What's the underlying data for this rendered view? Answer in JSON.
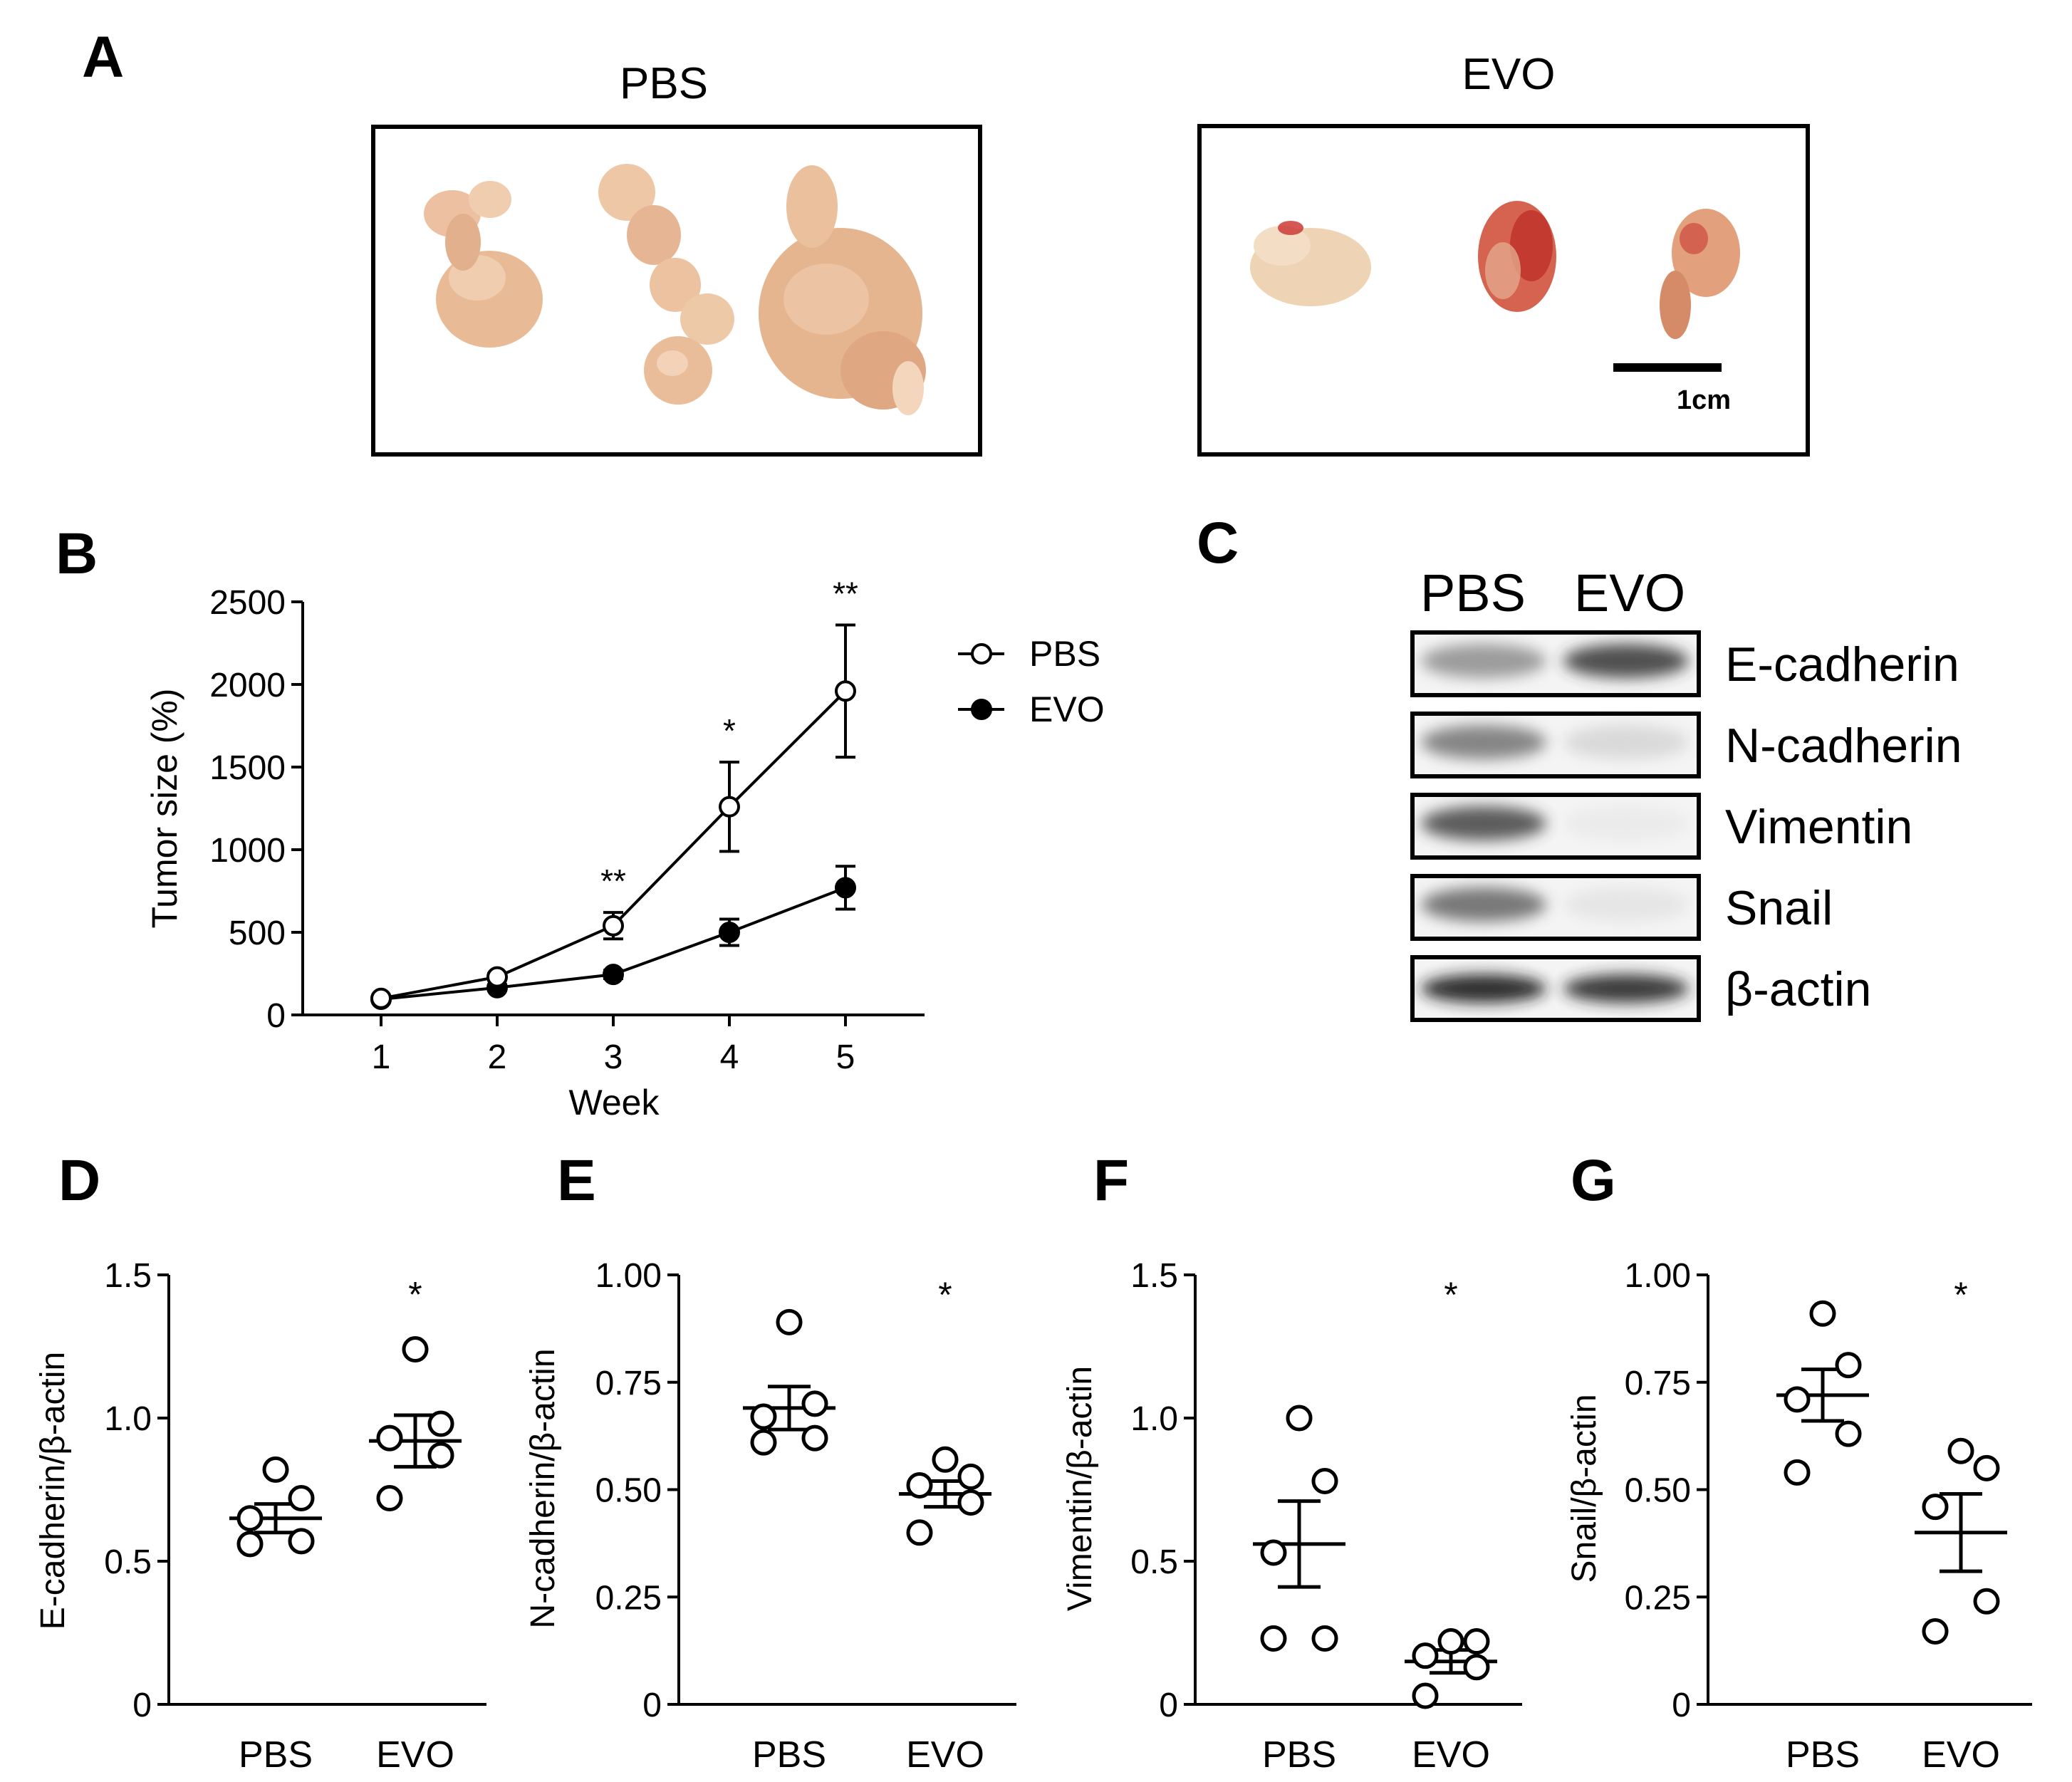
{
  "panel_letters": [
    "A",
    "B",
    "C",
    "D",
    "E",
    "F",
    "G"
  ],
  "panel_a": {
    "groups": [
      {
        "label": "PBS",
        "tissue_count": 3
      },
      {
        "label": "EVO",
        "tissue_count": 3
      }
    ],
    "scale_bar_label": "1cm",
    "colors": {
      "tissue": "#e9c4a0",
      "tissue_dark": "#c58f6a",
      "bleed": "#c9302c"
    }
  },
  "chart_data": [
    {
      "panel": "B",
      "type": "line",
      "ylabel": "Tumor size (%)",
      "xlabel": "Week",
      "x": [
        1,
        2,
        3,
        4,
        5
      ],
      "xticks": [
        "1",
        "2",
        "3",
        "4",
        "5"
      ],
      "ylim": [
        0,
        2500
      ],
      "yticks": [
        "0",
        "500",
        "1000",
        "1500",
        "2000",
        "2500"
      ],
      "legend": "right",
      "series": [
        {
          "name": "PBS",
          "marker": "open",
          "values": [
            100,
            230,
            540,
            1260,
            1960
          ],
          "err": [
            0,
            20,
            80,
            270,
            400
          ]
        },
        {
          "name": "EVO",
          "marker": "filled",
          "values": [
            95,
            165,
            245,
            500,
            770
          ],
          "err": [
            0,
            15,
            25,
            80,
            130
          ]
        }
      ],
      "significance": [
        {
          "x": 3,
          "label": "**"
        },
        {
          "x": 4,
          "label": "*"
        },
        {
          "x": 5,
          "label": "**"
        }
      ]
    },
    {
      "panel": "D",
      "type": "scatter",
      "ylabel": "E-cadherin/β-actin",
      "categories": [
        "PBS",
        "EVO"
      ],
      "ylim": [
        0,
        1.5
      ],
      "yticks": [
        "0",
        "0.5",
        "1.0",
        "1.5"
      ],
      "points": [
        [
          0.56,
          0.57,
          0.65,
          0.72,
          0.82
        ],
        [
          0.72,
          0.87,
          0.93,
          0.98,
          1.24
        ]
      ],
      "mean": [
        0.65,
        0.92
      ],
      "sem": [
        0.05,
        0.09
      ],
      "significance": "*"
    },
    {
      "panel": "E",
      "type": "scatter",
      "ylabel": "N-cadherin/β-actin",
      "categories": [
        "PBS",
        "EVO"
      ],
      "ylim": [
        0,
        1.0
      ],
      "yticks": [
        "0",
        "0.25",
        "0.50",
        "0.75",
        "1.00"
      ],
      "points": [
        [
          0.61,
          0.62,
          0.67,
          0.7,
          0.89
        ],
        [
          0.4,
          0.47,
          0.51,
          0.53,
          0.57
        ]
      ],
      "mean": [
        0.69,
        0.49
      ],
      "sem": [
        0.05,
        0.03
      ],
      "significance": "*"
    },
    {
      "panel": "F",
      "type": "scatter",
      "ylabel": "Vimentin/β-actin",
      "categories": [
        "PBS",
        "EVO"
      ],
      "ylim": [
        0,
        1.5
      ],
      "yticks": [
        "0",
        "0.5",
        "1.0",
        "1.5"
      ],
      "points": [
        [
          0.23,
          0.23,
          0.53,
          0.78,
          1.0
        ],
        [
          0.03,
          0.13,
          0.17,
          0.22,
          0.22
        ]
      ],
      "mean": [
        0.56,
        0.15
      ],
      "sem": [
        0.15,
        0.04
      ],
      "significance": "*"
    },
    {
      "panel": "G",
      "type": "scatter",
      "ylabel": "Snail/β-actin",
      "categories": [
        "PBS",
        "EVO"
      ],
      "ylim": [
        0,
        1.0
      ],
      "yticks": [
        "0",
        "0.25",
        "0.50",
        "0.75",
        "1.00"
      ],
      "points": [
        [
          0.54,
          0.63,
          0.71,
          0.79,
          0.91
        ],
        [
          0.17,
          0.24,
          0.46,
          0.55,
          0.59
        ]
      ],
      "mean": [
        0.72,
        0.4
      ],
      "sem": [
        0.06,
        0.09
      ],
      "significance": "*"
    }
  ],
  "western_blot": {
    "panel": "C",
    "lanes": [
      "PBS",
      "EVO"
    ],
    "rows": [
      {
        "label": "E-cadherin",
        "intensity": [
          0.55,
          0.85
        ]
      },
      {
        "label": "N-cadherin",
        "intensity": [
          0.65,
          0.2
        ]
      },
      {
        "label": "Vimentin",
        "intensity": [
          0.8,
          0.05
        ]
      },
      {
        "label": "Snail",
        "intensity": [
          0.7,
          0.1
        ]
      },
      {
        "label": "β-actin",
        "intensity": [
          0.95,
          0.92
        ]
      }
    ]
  }
}
